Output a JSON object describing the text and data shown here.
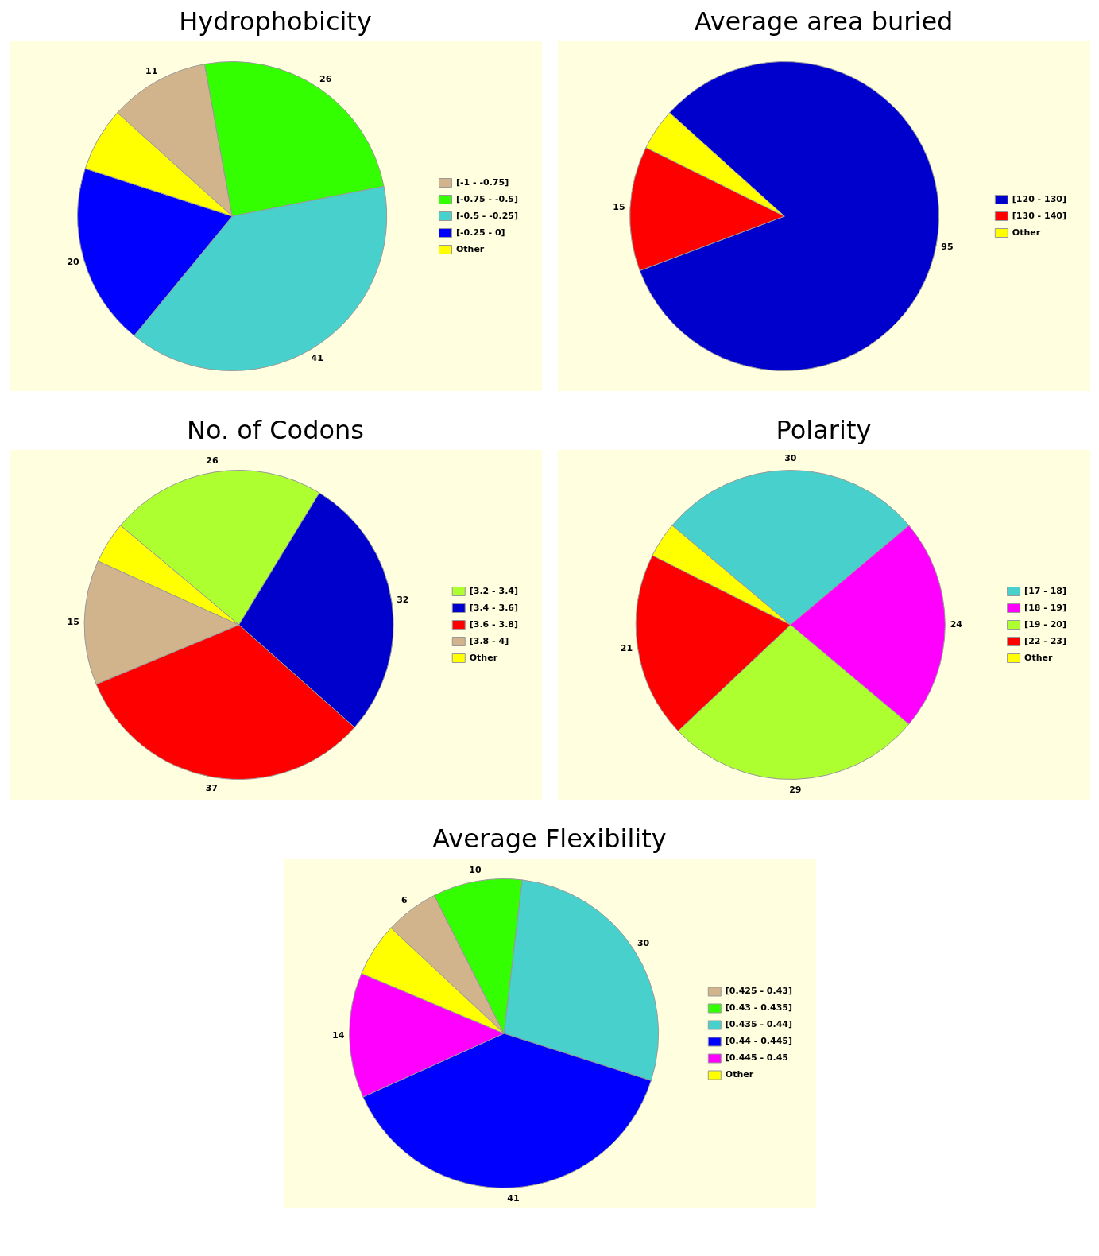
{
  "chart_data": [
    {
      "type": "pie",
      "title": "Hydrophobicity",
      "categories": [
        "[-1 - -0.75]",
        "[-0.75 - -0.5]",
        "[-0.5 - -0.25]",
        "[-0.25 - 0]",
        "Other"
      ],
      "values": [
        11,
        26,
        41,
        20,
        7
      ],
      "value_labels": [
        "11",
        "26",
        "41",
        "20",
        null
      ],
      "colors": [
        "#d2b48c",
        "#33ff00",
        "#48d1cc",
        "#0000ff",
        "#ffff00"
      ],
      "legend": "right"
    },
    {
      "type": "pie",
      "title": "Average area buried",
      "categories": [
        "[120 - 130]",
        "[130 - 140]",
        "Other"
      ],
      "values": [
        95,
        15,
        5
      ],
      "value_labels": [
        "95",
        "15",
        null
      ],
      "colors": [
        "#0000cd",
        "#ff0000",
        "#ffff00"
      ],
      "legend": "right"
    },
    {
      "type": "pie",
      "title": "No. of Codons",
      "categories": [
        "[3.2 - 3.4]",
        "[3.4 - 3.6]",
        "[3.6 - 3.8]",
        "[3.8 - 4]",
        "Other"
      ],
      "values": [
        26,
        32,
        37,
        15,
        5
      ],
      "value_labels": [
        "26",
        "32",
        "37",
        "15",
        null
      ],
      "colors": [
        "#adff2f",
        "#0000cd",
        "#ff0000",
        "#d2b48c",
        "#ffff00"
      ],
      "legend": "right"
    },
    {
      "type": "pie",
      "title": "Polarity",
      "categories": [
        "[17 - 18]",
        "[18 - 19]",
        "[19 - 20]",
        "[22 - 23]",
        "Other"
      ],
      "values": [
        30,
        24,
        29,
        21,
        4
      ],
      "value_labels": [
        "30",
        "24",
        "29",
        "21",
        null
      ],
      "colors": [
        "#48d1cc",
        "#ff00ff",
        "#adff2f",
        "#ff0000",
        "#ffff00"
      ],
      "legend": "right"
    },
    {
      "type": "pie",
      "title": "Average Flexibility",
      "categories": [
        "[0.425 - 0.43]",
        "[0.43 - 0.435]",
        "[0.435 - 0.44]",
        "[0.44 - 0.445]",
        "[0.445 - 0.45",
        "Other"
      ],
      "values": [
        6,
        10,
        30,
        41,
        14,
        6
      ],
      "value_labels": [
        "6",
        "10",
        "30",
        "41",
        "14",
        null
      ],
      "colors": [
        "#d2b48c",
        "#33ff00",
        "#48d1cc",
        "#0000ff",
        "#ff00ff",
        "#ffff00"
      ],
      "legend": "right"
    }
  ]
}
